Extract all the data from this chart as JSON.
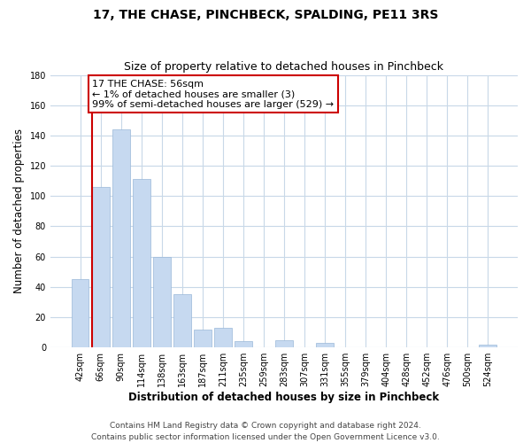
{
  "title": "17, THE CHASE, PINCHBECK, SPALDING, PE11 3RS",
  "subtitle": "Size of property relative to detached houses in Pinchbeck",
  "xlabel": "Distribution of detached houses by size in Pinchbeck",
  "ylabel": "Number of detached properties",
  "bar_labels": [
    "42sqm",
    "66sqm",
    "90sqm",
    "114sqm",
    "138sqm",
    "163sqm",
    "187sqm",
    "211sqm",
    "235sqm",
    "259sqm",
    "283sqm",
    "307sqm",
    "331sqm",
    "355sqm",
    "379sqm",
    "404sqm",
    "428sqm",
    "452sqm",
    "476sqm",
    "500sqm",
    "524sqm"
  ],
  "bar_values": [
    45,
    106,
    144,
    111,
    60,
    35,
    12,
    13,
    4,
    0,
    5,
    0,
    3,
    0,
    0,
    0,
    0,
    0,
    0,
    0,
    2
  ],
  "bar_color": "#c6d9f0",
  "bar_edge_color": "#9ab8d8",
  "annotation_line1": "17 THE CHASE: 56sqm",
  "annotation_line2": "← 1% of detached houses are smaller (3)",
  "annotation_line3": "99% of semi-detached houses are larger (529) →",
  "annotation_box_edge_color": "#cc0000",
  "marker_line_color": "#cc0000",
  "ylim": [
    0,
    180
  ],
  "yticks": [
    0,
    20,
    40,
    60,
    80,
    100,
    120,
    140,
    160,
    180
  ],
  "footer_line1": "Contains HM Land Registry data © Crown copyright and database right 2024.",
  "footer_line2": "Contains public sector information licensed under the Open Government Licence v3.0.",
  "bg_color": "#ffffff",
  "grid_color": "#c8d8e8",
  "title_fontsize": 10,
  "subtitle_fontsize": 9,
  "axis_label_fontsize": 8.5,
  "tick_fontsize": 7,
  "annotation_fontsize": 8,
  "footer_fontsize": 6.5
}
